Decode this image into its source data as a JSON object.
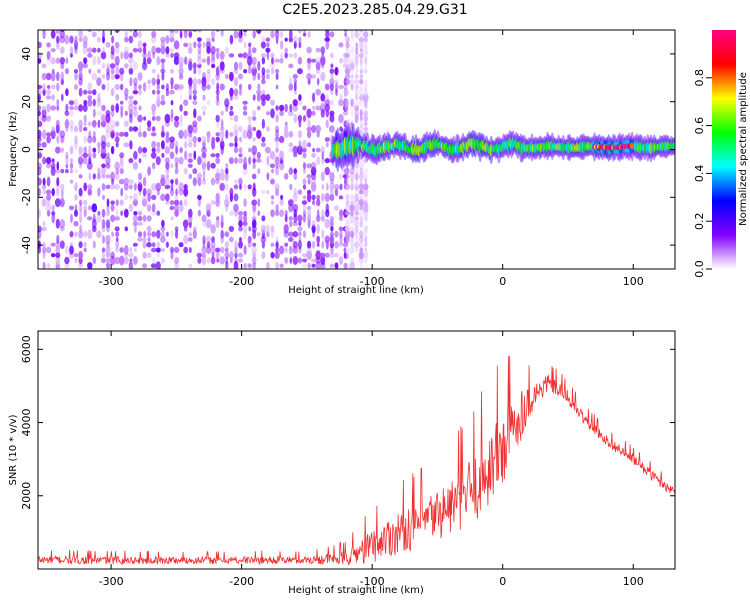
{
  "title": "C2E5.2023.285.04.29.G31",
  "chart_data": [
    {
      "type": "heatmap",
      "xlabel": "Height of straight line (km)",
      "ylabel": "Frequency (Hz)",
      "xlim": [
        -356,
        132
      ],
      "ylim": [
        -50,
        50
      ],
      "xticks": [
        -300,
        -200,
        -100,
        0,
        100
      ],
      "yticks": [
        -40,
        -20,
        0,
        20,
        40
      ],
      "grid": false,
      "colorbar": {
        "label": "Normalized spectral amplitude",
        "range": [
          0.0,
          1.0
        ],
        "ticks": [
          "0.0",
          "0.2",
          "0.4",
          "0.6",
          "0.8"
        ],
        "stops": [
          "#ffffff",
          "#8000ff",
          "#0000ff",
          "#00ffff",
          "#00ff00",
          "#ffff00",
          "#ff0000",
          "#ff0080"
        ]
      },
      "regions": [
        {
          "kind": "noise",
          "x_range": [
            -356,
            -120
          ],
          "y_range": [
            -50,
            50
          ],
          "amplitude": 0.12
        },
        {
          "kind": "noise-fade",
          "x_range": [
            -120,
            -105
          ],
          "y_range": [
            -50,
            50
          ],
          "amplitude": 0.05
        },
        {
          "kind": "signal-band",
          "x_range": [
            -130,
            132
          ],
          "center_hz": 1,
          "width_hz": 6,
          "amplitude": 0.55
        },
        {
          "kind": "signal-peak",
          "x_range": [
            70,
            100
          ],
          "center_hz": 1,
          "width_hz": 3,
          "amplitude": 0.95
        }
      ]
    },
    {
      "type": "line",
      "xlabel": "Height of straight line (km)",
      "ylabel": "SNR (10 * v/v)",
      "xlim": [
        -356,
        132
      ],
      "ylim": [
        0,
        6500
      ],
      "xticks": [
        -300,
        -200,
        -100,
        0,
        100
      ],
      "yticks": [
        2000,
        4000,
        6000
      ],
      "grid": false,
      "series": [
        {
          "color": "#f03030",
          "envelope_x": [
            -356,
            -250,
            -150,
            -120,
            -100,
            -80,
            -60,
            -40,
            -20,
            0,
            10,
            20,
            35,
            50,
            60,
            80,
            100,
            120,
            132
          ],
          "envelope_y": [
            250,
            240,
            250,
            300,
            650,
            1000,
            1300,
            1700,
            2300,
            3300,
            4000,
            4600,
            5100,
            4700,
            4200,
            3500,
            3000,
            2400,
            2100
          ],
          "noise_amp": [
            200,
            180,
            180,
            350,
            800,
            1000,
            1100,
            1300,
            1700,
            2000,
            1500,
            800,
            400,
            350,
            300,
            250,
            250,
            250,
            200
          ]
        }
      ]
    }
  ]
}
